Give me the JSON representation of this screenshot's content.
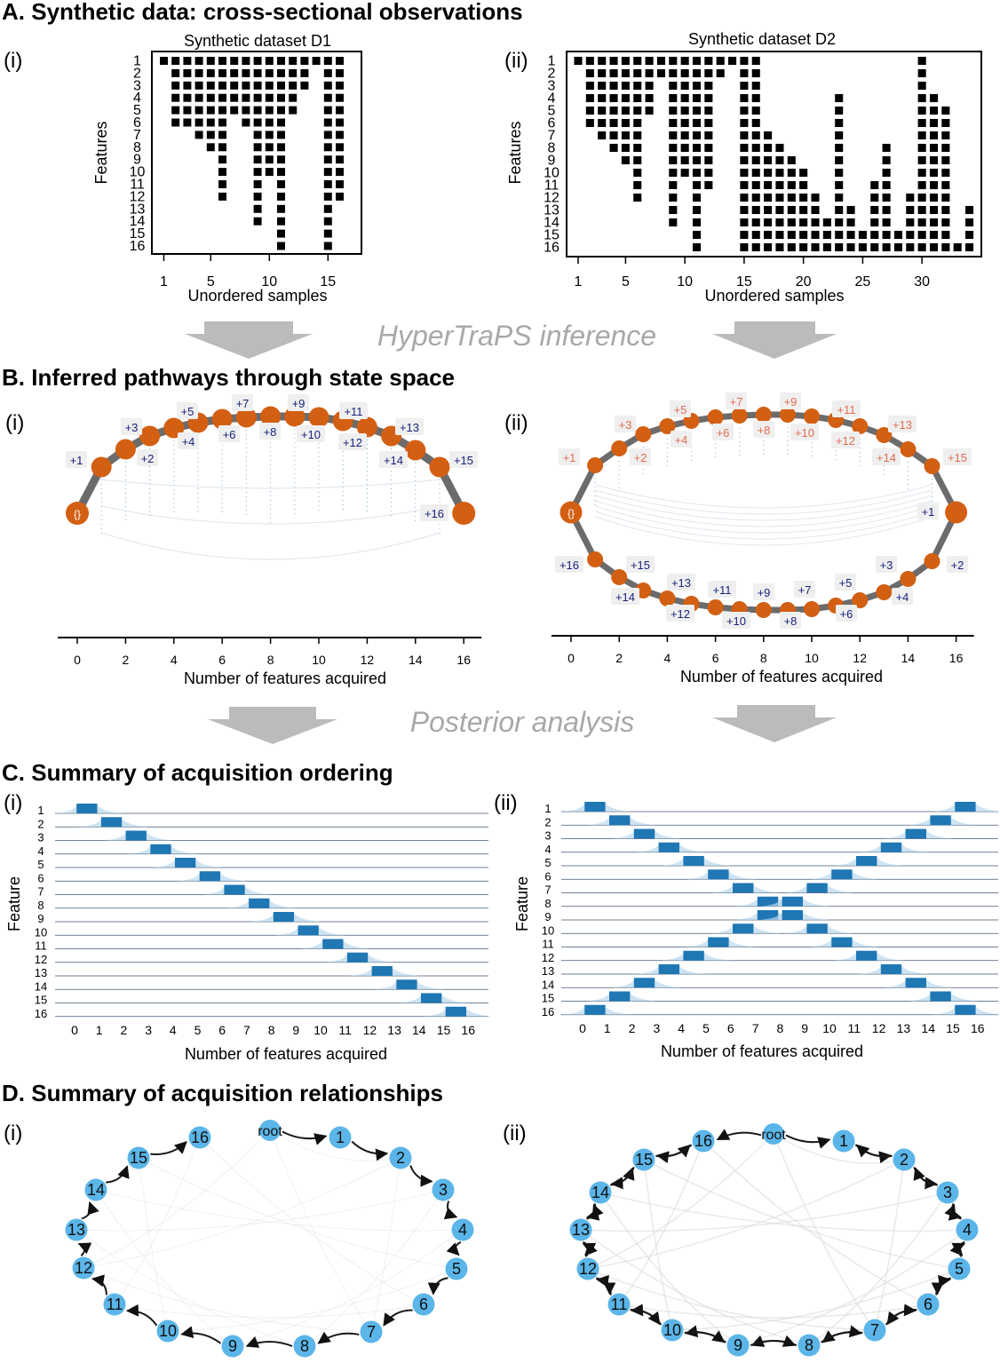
{
  "sections": {
    "A": "A. Synthetic data: cross-sectional observations",
    "B": "B. Inferred pathways through state space",
    "C": "C. Summary of acquisition ordering",
    "D": "D. Summary of acquisition relationships"
  },
  "panel_labels": {
    "i": "(i)",
    "ii": "(ii)"
  },
  "stages": {
    "inference": "HyperTraPS inference",
    "posterior": "Posterior analysis"
  },
  "colors": {
    "orange": "#d35f13",
    "blue": "#1f77b4",
    "node_blue": "#5bb5e8",
    "arrow_gray": "#b9b9b9",
    "path_gray": "#6b6b6b"
  },
  "chart_data": [
    {
      "id": "A-i",
      "type": "heatmap",
      "title": "Synthetic dataset D1",
      "xlabel": "Unordered samples",
      "ylabel": "Features",
      "x_ticks": [
        1,
        5,
        10,
        15
      ],
      "x_range": [
        1,
        16
      ],
      "y_ticks": [
        1,
        2,
        3,
        4,
        5,
        6,
        7,
        8,
        9,
        10,
        11,
        12,
        13,
        14,
        15,
        16
      ],
      "sample_feature_counts": [
        1,
        6,
        6,
        7,
        8,
        12,
        5,
        6,
        14,
        10,
        16,
        5,
        3,
        1,
        16,
        12
      ]
    },
    {
      "id": "A-ii",
      "type": "heatmap",
      "title": "Synthetic dataset D2",
      "xlabel": "Unordered samples",
      "ylabel": "Features",
      "x_ticks": [
        1,
        5,
        10,
        15,
        20,
        25,
        30
      ],
      "x_range": [
        1,
        34
      ],
      "y_ticks": [
        1,
        2,
        3,
        4,
        5,
        6,
        7,
        8,
        9,
        10,
        11,
        12,
        13,
        14,
        15,
        16
      ],
      "sample_features": [
        [
          1,
          1
        ],
        [
          1,
          6
        ],
        [
          1,
          7
        ],
        [
          1,
          8
        ],
        [
          1,
          9
        ],
        [
          1,
          12
        ],
        [
          1,
          5
        ],
        [
          1,
          2
        ],
        [
          1,
          14
        ],
        [
          1,
          10
        ],
        [
          1,
          16
        ],
        [
          1,
          11
        ],
        [
          1,
          2
        ],
        [
          1,
          1
        ],
        [
          1,
          16
        ],
        [
          1,
          16
        ],
        [
          7,
          16
        ],
        [
          8,
          16
        ],
        [
          9,
          16
        ],
        [
          10,
          16
        ],
        [
          12,
          16
        ],
        [
          14,
          16
        ],
        [
          4,
          16
        ],
        [
          13,
          16
        ],
        [
          15,
          16
        ],
        [
          11,
          16
        ],
        [
          8,
          16
        ],
        [
          15,
          16
        ],
        [
          12,
          16
        ],
        [
          1,
          16
        ],
        [
          4,
          16
        ],
        [
          5,
          16
        ],
        [
          16,
          16
        ],
        [
          13,
          16
        ]
      ]
    },
    {
      "id": "B-i",
      "type": "line",
      "xlabel": "Number of features acquired",
      "x_ticks": [
        0,
        2,
        4,
        6,
        8,
        10,
        12,
        14,
        16
      ],
      "start_label": "{}",
      "node_labels": [
        "+1",
        "+2",
        "+3",
        "+4",
        "+5",
        "+6",
        "+7",
        "+8",
        "+9",
        "+10",
        "+11",
        "+12",
        "+13",
        "+14",
        "+15",
        "+16"
      ]
    },
    {
      "id": "B-ii",
      "type": "line",
      "xlabel": "Number of features acquired",
      "x_ticks": [
        0,
        2,
        4,
        6,
        8,
        10,
        12,
        14,
        16
      ],
      "start_label": "{}",
      "upper_labels": [
        "+1",
        "+2",
        "+3",
        "+4",
        "+5",
        "+6",
        "+7",
        "+8",
        "+9",
        "+10",
        "+11",
        "+12",
        "+13",
        "+14",
        "+15"
      ],
      "lower_labels": [
        "+16",
        "+15",
        "+14",
        "+13",
        "+12",
        "+11",
        "+10",
        "+9",
        "+8",
        "+7",
        "+6",
        "+5",
        "+4",
        "+3",
        "+2",
        "+1"
      ]
    },
    {
      "id": "C-i",
      "type": "bar",
      "xlabel": "Number of features acquired",
      "ylabel": "Feature",
      "x_ticks": [
        0,
        1,
        2,
        3,
        4,
        5,
        6,
        7,
        8,
        9,
        10,
        11,
        12,
        13,
        14,
        15,
        16
      ],
      "features": [
        1,
        2,
        3,
        4,
        5,
        6,
        7,
        8,
        9,
        10,
        11,
        12,
        13,
        14,
        15,
        16
      ],
      "peak_positions": [
        [
          0
        ],
        [
          1
        ],
        [
          2
        ],
        [
          3
        ],
        [
          4
        ],
        [
          5
        ],
        [
          6
        ],
        [
          7
        ],
        [
          8
        ],
        [
          9
        ],
        [
          10
        ],
        [
          11
        ],
        [
          12
        ],
        [
          13
        ],
        [
          14
        ],
        [
          15
        ]
      ]
    },
    {
      "id": "C-ii",
      "type": "bar",
      "xlabel": "Number of features acquired",
      "ylabel": "Feature",
      "x_ticks": [
        0,
        1,
        2,
        3,
        4,
        5,
        6,
        7,
        8,
        9,
        10,
        11,
        12,
        13,
        14,
        15,
        16
      ],
      "features": [
        1,
        2,
        3,
        4,
        5,
        6,
        7,
        8,
        9,
        10,
        11,
        12,
        13,
        14,
        15,
        16
      ],
      "peak_positions": [
        [
          0,
          15
        ],
        [
          1,
          14
        ],
        [
          2,
          13
        ],
        [
          3,
          12
        ],
        [
          4,
          11
        ],
        [
          5,
          10
        ],
        [
          6,
          9
        ],
        [
          7,
          8
        ],
        [
          7,
          8
        ],
        [
          6,
          9
        ],
        [
          5,
          10
        ],
        [
          4,
          11
        ],
        [
          3,
          12
        ],
        [
          2,
          13
        ],
        [
          1,
          14
        ],
        [
          0,
          15
        ]
      ]
    },
    {
      "id": "D-i",
      "type": "table",
      "nodes": [
        "root",
        "1",
        "2",
        "3",
        "4",
        "5",
        "6",
        "7",
        "8",
        "9",
        "10",
        "11",
        "12",
        "13",
        "14",
        "15",
        "16"
      ],
      "edges": [
        [
          "root",
          "1"
        ],
        [
          "1",
          "2"
        ],
        [
          "2",
          "3"
        ],
        [
          "3",
          "4"
        ],
        [
          "4",
          "5"
        ],
        [
          "5",
          "6"
        ],
        [
          "6",
          "7"
        ],
        [
          "7",
          "8"
        ],
        [
          "8",
          "9"
        ],
        [
          "9",
          "10"
        ],
        [
          "10",
          "11"
        ],
        [
          "11",
          "12"
        ],
        [
          "12",
          "13"
        ],
        [
          "13",
          "14"
        ],
        [
          "14",
          "15"
        ],
        [
          "15",
          "16"
        ]
      ]
    },
    {
      "id": "D-ii",
      "type": "table",
      "nodes": [
        "root",
        "1",
        "2",
        "3",
        "4",
        "5",
        "6",
        "7",
        "8",
        "9",
        "10",
        "11",
        "12",
        "13",
        "14",
        "15",
        "16"
      ],
      "edges": [
        [
          "root",
          "1"
        ],
        [
          "root",
          "16"
        ],
        [
          "1",
          "2"
        ],
        [
          "2",
          "3"
        ],
        [
          "3",
          "4"
        ],
        [
          "4",
          "5"
        ],
        [
          "5",
          "6"
        ],
        [
          "6",
          "7"
        ],
        [
          "7",
          "8"
        ],
        [
          "8",
          "9"
        ],
        [
          "9",
          "10"
        ],
        [
          "10",
          "11"
        ],
        [
          "11",
          "12"
        ],
        [
          "12",
          "13"
        ],
        [
          "13",
          "14"
        ],
        [
          "14",
          "15"
        ],
        [
          "15",
          "16"
        ],
        [
          "16",
          "15"
        ],
        [
          "15",
          "14"
        ],
        [
          "14",
          "13"
        ],
        [
          "13",
          "12"
        ],
        [
          "12",
          "11"
        ],
        [
          "11",
          "10"
        ],
        [
          "10",
          "9"
        ],
        [
          "9",
          "8"
        ],
        [
          "8",
          "7"
        ],
        [
          "7",
          "6"
        ],
        [
          "6",
          "5"
        ],
        [
          "5",
          "4"
        ],
        [
          "4",
          "3"
        ],
        [
          "3",
          "2"
        ],
        [
          "2",
          "1"
        ]
      ]
    }
  ]
}
